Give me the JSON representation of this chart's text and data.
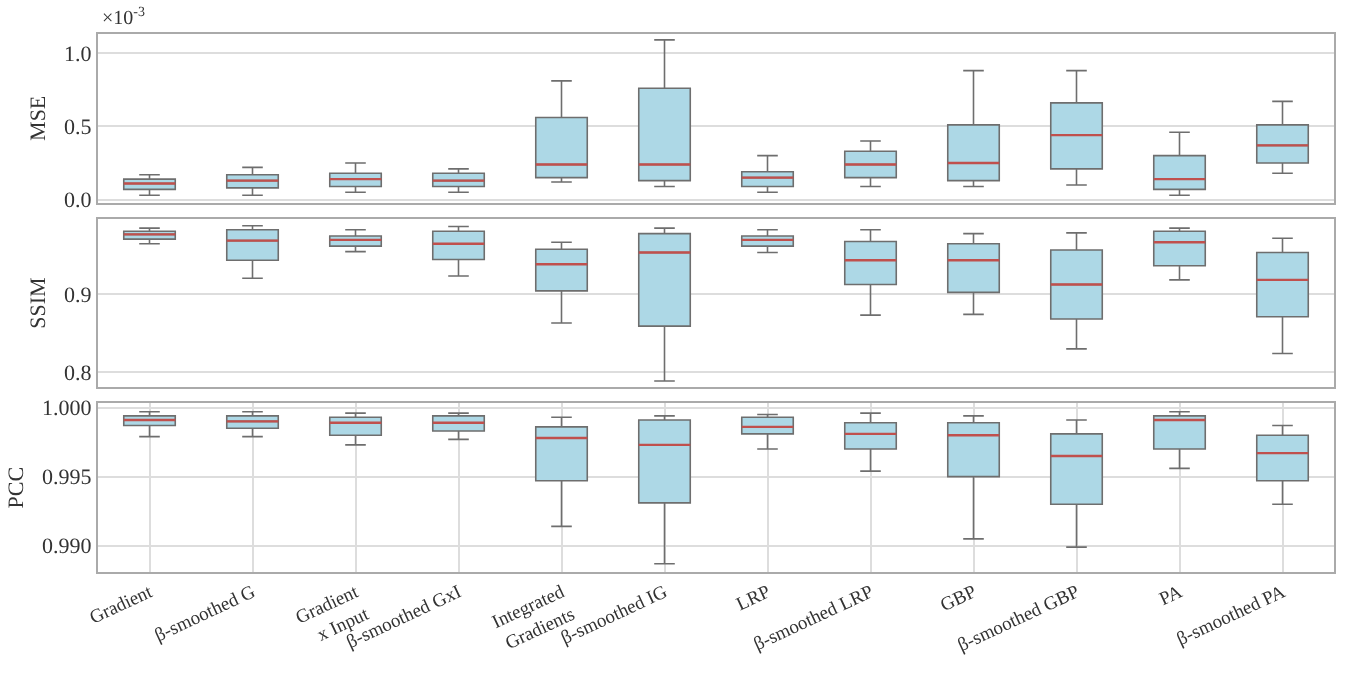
{
  "chart_data": [
    {
      "type": "box",
      "ylabel": "MSE",
      "annotations": [
        "×10$^{-3}$"
      ],
      "series": [
        {
          "color": "#add8e6",
          "boxes": [
            {
              "low": 0.03,
              "q1": 0.07,
              "median": 0.11,
              "q3": 0.14,
              "high": 0.17
            },
            {
              "low": 0.03,
              "q1": 0.08,
              "median": 0.13,
              "q3": 0.17,
              "high": 0.22
            },
            {
              "low": 0.05,
              "q1": 0.09,
              "median": 0.14,
              "q3": 0.18,
              "high": 0.25
            },
            {
              "low": 0.05,
              "q1": 0.09,
              "median": 0.13,
              "q3": 0.18,
              "high": 0.21
            },
            {
              "low": 0.12,
              "q1": 0.15,
              "median": 0.24,
              "q3": 0.56,
              "high": 0.81
            },
            {
              "low": 0.09,
              "q1": 0.13,
              "median": 0.24,
              "q3": 0.76,
              "high": 1.09
            },
            {
              "low": 0.05,
              "q1": 0.09,
              "median": 0.15,
              "q3": 0.19,
              "high": 0.3
            },
            {
              "low": 0.09,
              "q1": 0.15,
              "median": 0.24,
              "q3": 0.33,
              "high": 0.4
            },
            {
              "low": 0.09,
              "q1": 0.13,
              "median": 0.25,
              "q3": 0.51,
              "high": 0.88
            },
            {
              "low": 0.1,
              "q1": 0.21,
              "median": 0.44,
              "q3": 0.66,
              "high": 0.88
            },
            {
              "low": 0.03,
              "q1": 0.07,
              "median": 0.14,
              "q3": 0.3,
              "high": 0.46
            },
            {
              "low": 0.18,
              "q1": 0.25,
              "median": 0.37,
              "q3": 0.51,
              "high": 0.67
            }
          ]
        }
      ],
      "ylim": [
        -0.02,
        1.13
      ],
      "yticks": [
        {
          "value": 0,
          "label": "0.0"
        },
        0.5,
        {
          "value": 1,
          "label": "1.0"
        }
      ],
      "grid": true,
      "tick_labels": "y"
    },
    {
      "type": "box",
      "ylabel": "SSIM",
      "series": [
        {
          "color": "#add8e6",
          "boxes": [
            {
              "low": 0.964,
              "q1": 0.97,
              "median": 0.976,
              "q3": 0.98,
              "high": 0.984
            },
            {
              "low": 0.92,
              "q1": 0.943,
              "median": 0.968,
              "q3": 0.982,
              "high": 0.987
            },
            {
              "low": 0.954,
              "q1": 0.961,
              "median": 0.969,
              "q3": 0.974,
              "high": 0.982
            },
            {
              "low": 0.923,
              "q1": 0.944,
              "median": 0.964,
              "q3": 0.98,
              "high": 0.986
            },
            {
              "low": 0.863,
              "q1": 0.904,
              "median": 0.938,
              "q3": 0.957,
              "high": 0.966
            },
            {
              "low": 0.789,
              "q1": 0.859,
              "median": 0.953,
              "q3": 0.977,
              "high": 0.984
            },
            {
              "low": 0.953,
              "q1": 0.961,
              "median": 0.969,
              "q3": 0.974,
              "high": 0.982
            },
            {
              "low": 0.873,
              "q1": 0.912,
              "median": 0.943,
              "q3": 0.967,
              "high": 0.982
            },
            {
              "low": 0.874,
              "q1": 0.902,
              "median": 0.943,
              "q3": 0.964,
              "high": 0.977
            },
            {
              "low": 0.83,
              "q1": 0.868,
              "median": 0.912,
              "q3": 0.956,
              "high": 0.978
            },
            {
              "low": 0.918,
              "q1": 0.936,
              "median": 0.966,
              "q3": 0.98,
              "high": 0.984
            },
            {
              "low": 0.824,
              "q1": 0.871,
              "median": 0.918,
              "q3": 0.953,
              "high": 0.971
            }
          ]
        }
      ],
      "ylim": [
        0.781,
        0.996
      ],
      "yticks": [
        0.8,
        0.9
      ],
      "grid": true,
      "tick_labels": "y"
    },
    {
      "type": "box",
      "ylabel": "PCC",
      "categories": [
        "Gradient",
        "β-smoothed G",
        "Gradient\nx Input",
        "β-smoothed GxI",
        "Integrated\nGradients",
        "β-smoothed IG",
        "LRP",
        "β-smoothed LRP",
        "GBP",
        "β-smoothed GBP",
        "PA",
        "β-smoothed PA"
      ],
      "series": [
        {
          "color": "#add8e6",
          "boxes": [
            {
              "low": 0.9979,
              "q1": 0.9987,
              "median": 0.9991,
              "q3": 0.9994,
              "high": 0.9997
            },
            {
              "low": 0.9979,
              "q1": 0.9985,
              "median": 0.999,
              "q3": 0.9994,
              "high": 0.9997
            },
            {
              "low": 0.9973,
              "q1": 0.998,
              "median": 0.9989,
              "q3": 0.9993,
              "high": 0.9996
            },
            {
              "low": 0.9977,
              "q1": 0.9983,
              "median": 0.9989,
              "q3": 0.9994,
              "high": 0.9996
            },
            {
              "low": 0.9914,
              "q1": 0.9947,
              "median": 0.9978,
              "q3": 0.9986,
              "high": 0.9993
            },
            {
              "low": 0.9887,
              "q1": 0.9931,
              "median": 0.9973,
              "q3": 0.9991,
              "high": 0.9994
            },
            {
              "low": 0.997,
              "q1": 0.9981,
              "median": 0.9986,
              "q3": 0.9993,
              "high": 0.9995
            },
            {
              "low": 0.9954,
              "q1": 0.997,
              "median": 0.9981,
              "q3": 0.9989,
              "high": 0.9996
            },
            {
              "low": 0.9905,
              "q1": 0.995,
              "median": 0.998,
              "q3": 0.9989,
              "high": 0.9994
            },
            {
              "low": 0.9899,
              "q1": 0.993,
              "median": 0.9965,
              "q3": 0.9981,
              "high": 0.9991
            },
            {
              "low": 0.9956,
              "q1": 0.997,
              "median": 0.9991,
              "q3": 0.9994,
              "high": 0.9997
            },
            {
              "low": 0.993,
              "q1": 0.9947,
              "median": 0.9967,
              "q3": 0.998,
              "high": 0.9987
            }
          ]
        }
      ],
      "ylim": [
        0.9881,
        1.0003
      ],
      "yticks": [
        {
          "value": 1,
          "label": "1.000"
        },
        0.995,
        {
          "value": 0.99,
          "label": "0.990"
        }
      ],
      "grid": true
    }
  ]
}
